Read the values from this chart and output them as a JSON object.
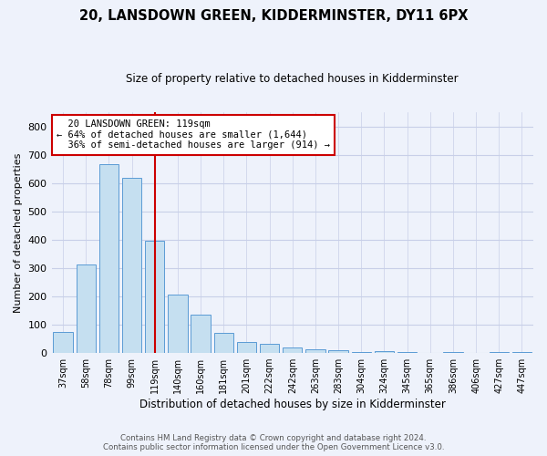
{
  "title": "20, LANSDOWN GREEN, KIDDERMINSTER, DY11 6PX",
  "subtitle": "Size of property relative to detached houses in Kidderminster",
  "xlabel": "Distribution of detached houses by size in Kidderminster",
  "ylabel": "Number of detached properties",
  "categories": [
    "37sqm",
    "58sqm",
    "78sqm",
    "99sqm",
    "119sqm",
    "140sqm",
    "160sqm",
    "181sqm",
    "201sqm",
    "222sqm",
    "242sqm",
    "263sqm",
    "283sqm",
    "304sqm",
    "324sqm",
    "345sqm",
    "365sqm",
    "386sqm",
    "406sqm",
    "427sqm",
    "447sqm"
  ],
  "values": [
    75,
    313,
    668,
    618,
    398,
    205,
    135,
    70,
    40,
    33,
    18,
    13,
    10,
    4,
    8,
    3,
    0,
    5,
    0,
    5,
    3
  ],
  "bar_color": "#c5dff0",
  "bar_edge_color": "#5b9bd5",
  "highlight_index": 4,
  "highlight_color": "#cc0000",
  "annotation_text": "  20 LANSDOWN GREEN: 119sqm\n← 64% of detached houses are smaller (1,644)\n  36% of semi-detached houses are larger (914) →",
  "annotation_box_color": "#ffffff",
  "annotation_box_edge_color": "#cc0000",
  "footer_line1": "Contains HM Land Registry data © Crown copyright and database right 2024.",
  "footer_line2": "Contains public sector information licensed under the Open Government Licence v3.0.",
  "ylim": [
    0,
    850
  ],
  "yticks": [
    0,
    100,
    200,
    300,
    400,
    500,
    600,
    700,
    800
  ],
  "background_color": "#eef2fb",
  "plot_bg_color": "#eef2fb",
  "grid_color": "#c8cfe8"
}
